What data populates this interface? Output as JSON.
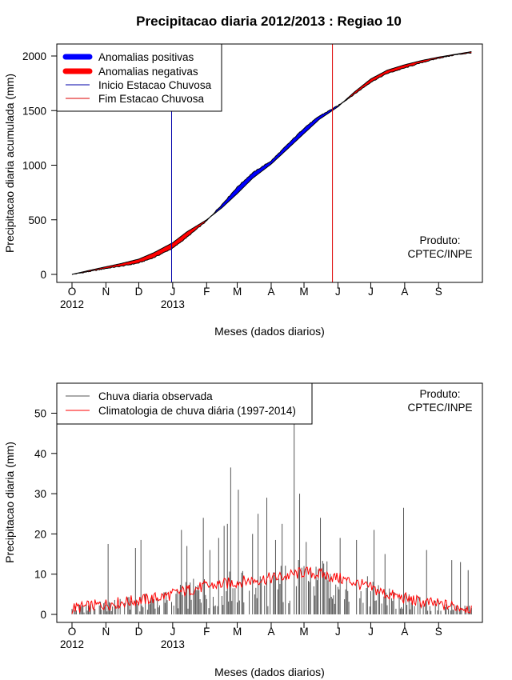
{
  "chart_data": [
    {
      "type": "area",
      "title": "Precipitacao diaria 2012/2013 : Regiao 10",
      "xlabel": "Meses (dados diarios)",
      "ylabel": "Precipitacao diaria acumulada (mm)",
      "ylim": [
        0,
        2100
      ],
      "yticks": [
        0,
        500,
        1000,
        1500,
        2000
      ],
      "month_labels": [
        "O",
        "N",
        "D",
        "J",
        "F",
        "M",
        "A",
        "M",
        "J",
        "J",
        "A",
        "S"
      ],
      "month_start_day": [
        0,
        31,
        61,
        92,
        123,
        151,
        182,
        212,
        243,
        273,
        304,
        335
      ],
      "year_labels": [
        {
          "label": "2012",
          "day": 0
        },
        {
          "label": "2013",
          "day": 92
        }
      ],
      "total_days": 365,
      "legend": [
        {
          "label": "Anomalias positivas",
          "color": "#0000ff",
          "kind": "thick"
        },
        {
          "label": "Anomalias negativas",
          "color": "#ff0000",
          "kind": "thick"
        },
        {
          "label": "Inicio Estacao Chuvosa",
          "color": "#0000aa",
          "kind": "thin"
        },
        {
          "label": "Fim Estacao Chuvosa",
          "color": "#dd0000",
          "kind": "thin"
        }
      ],
      "annotation": [
        "Produto:",
        "CPTEC/INPE"
      ],
      "rainy_season_start_day": 91,
      "rainy_season_end_day": 238,
      "observed_cumulative": {
        "days": [
          0,
          15,
          31,
          45,
          61,
          75,
          92,
          105,
          123,
          137,
          151,
          165,
          182,
          196,
          212,
          226,
          243,
          258,
          273,
          288,
          304,
          320,
          335,
          350,
          365
        ],
        "values": [
          0,
          25,
          55,
          75,
          105,
          155,
          240,
          340,
          490,
          640,
          800,
          930,
          1040,
          1180,
          1340,
          1450,
          1545,
          1650,
          1760,
          1840,
          1890,
          1940,
          1980,
          2010,
          2030
        ]
      },
      "climatology_cumulative": {
        "days": [
          0,
          15,
          31,
          45,
          61,
          75,
          92,
          105,
          123,
          137,
          151,
          165,
          182,
          196,
          212,
          226,
          243,
          258,
          273,
          288,
          304,
          320,
          335,
          350,
          365
        ],
        "values": [
          0,
          35,
          70,
          100,
          140,
          200,
          290,
          390,
          500,
          610,
          740,
          880,
          1010,
          1140,
          1290,
          1420,
          1535,
          1670,
          1790,
          1870,
          1920,
          1960,
          1990,
          2015,
          2040
        ]
      }
    },
    {
      "type": "bar",
      "xlabel": "Meses (dados diarios)",
      "ylabel": "Precipitacao diaria (mm)",
      "ylim": [
        0,
        56
      ],
      "yticks": [
        0,
        10,
        20,
        30,
        40,
        50
      ],
      "month_labels": [
        "O",
        "N",
        "D",
        "J",
        "F",
        "M",
        "A",
        "M",
        "J",
        "J",
        "A",
        "S"
      ],
      "month_start_day": [
        0,
        31,
        61,
        92,
        123,
        151,
        182,
        212,
        243,
        273,
        304,
        335
      ],
      "year_labels": [
        {
          "label": "2012",
          "day": 0
        },
        {
          "label": "2013",
          "day": 92
        }
      ],
      "total_days": 365,
      "legend": [
        {
          "label": "Chuva diaria observada",
          "color": "#555555"
        },
        {
          "label": "Climatologia de chuva diária (1997-2014)",
          "color": "#ff0000"
        }
      ],
      "annotation": [
        "Produto:",
        "CPTEC/INPE"
      ],
      "rain_spikes": [
        {
          "day": 33,
          "value": 17.5
        },
        {
          "day": 58,
          "value": 16.5
        },
        {
          "day": 63,
          "value": 18.5
        },
        {
          "day": 100,
          "value": 21
        },
        {
          "day": 105,
          "value": 17
        },
        {
          "day": 120,
          "value": 24
        },
        {
          "day": 126,
          "value": 16
        },
        {
          "day": 134,
          "value": 19
        },
        {
          "day": 139,
          "value": 22
        },
        {
          "day": 142,
          "value": 22.5
        },
        {
          "day": 145,
          "value": 36.5
        },
        {
          "day": 152,
          "value": 31
        },
        {
          "day": 165,
          "value": 20
        },
        {
          "day": 170,
          "value": 25
        },
        {
          "day": 178,
          "value": 29
        },
        {
          "day": 186,
          "value": 18.5
        },
        {
          "day": 192,
          "value": 22.5
        },
        {
          "day": 203,
          "value": 48
        },
        {
          "day": 208,
          "value": 30
        },
        {
          "day": 214,
          "value": 18
        },
        {
          "day": 227,
          "value": 24
        },
        {
          "day": 245,
          "value": 19
        },
        {
          "day": 260,
          "value": 18.5
        },
        {
          "day": 276,
          "value": 21
        },
        {
          "day": 286,
          "value": 15
        },
        {
          "day": 303,
          "value": 26.5
        },
        {
          "day": 324,
          "value": 16
        },
        {
          "day": 347,
          "value": 13.5
        },
        {
          "day": 355,
          "value": 13
        },
        {
          "day": 362,
          "value": 11
        }
      ],
      "climatology_daily": {
        "days": [
          0,
          15,
          31,
          45,
          61,
          75,
          92,
          105,
          123,
          137,
          151,
          165,
          182,
          196,
          212,
          226,
          243,
          258,
          273,
          288,
          304,
          320,
          335,
          350,
          365
        ],
        "values": [
          1.5,
          2.0,
          2.5,
          3.0,
          3.5,
          4.0,
          5.0,
          6.0,
          7.0,
          7.5,
          8.0,
          8.5,
          9.0,
          9.5,
          10.5,
          10.0,
          9.0,
          8.0,
          6.5,
          5.0,
          4.0,
          3.0,
          2.5,
          2.0,
          1.5
        ]
      }
    }
  ]
}
